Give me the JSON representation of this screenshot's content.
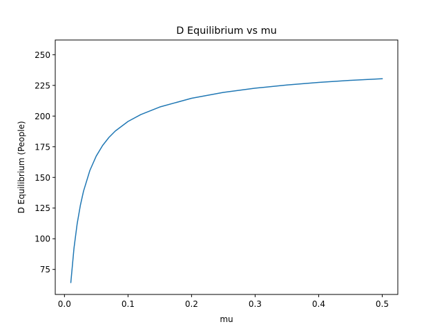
{
  "chart_data": {
    "type": "line",
    "title": "D Equilibrium vs mu",
    "xlabel": "mu",
    "ylabel": "D Equilibrium (People)",
    "xlim": [
      -0.0145,
      0.5245
    ],
    "ylim": [
      54.6,
      262.0
    ],
    "xticks": [
      0.0,
      0.1,
      0.2,
      0.3,
      0.4,
      0.5
    ],
    "xtick_labels": [
      "0.0",
      "0.1",
      "0.2",
      "0.3",
      "0.4",
      "0.5"
    ],
    "yticks": [
      75,
      100,
      125,
      150,
      175,
      200,
      225,
      250
    ],
    "ytick_labels": [
      "75",
      "100",
      "125",
      "150",
      "175",
      "200",
      "225",
      "250"
    ],
    "grid": false,
    "legend": "none",
    "series": [
      {
        "color": "#1f77b4",
        "x": [
          0.01,
          0.015,
          0.02,
          0.025,
          0.03,
          0.04,
          0.05,
          0.06,
          0.07,
          0.08,
          0.1,
          0.12,
          0.15,
          0.2,
          0.25,
          0.3,
          0.35,
          0.4,
          0.45,
          0.5
        ],
        "y": [
          64.3,
          92.4,
          112.3,
          127.2,
          138.8,
          155.7,
          167.4,
          176.0,
          182.6,
          187.8,
          195.6,
          201.2,
          207.4,
          214.5,
          219.3,
          222.7,
          225.3,
          227.4,
          229.1,
          230.4
        ]
      }
    ]
  }
}
